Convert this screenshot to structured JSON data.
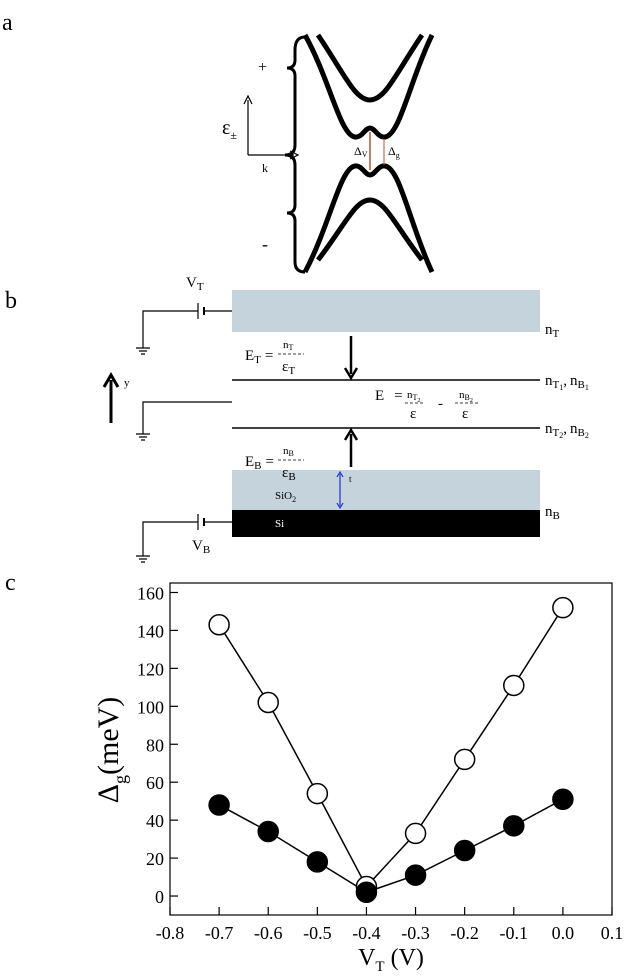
{
  "panel_a": {
    "label": "a",
    "band_plus": "+",
    "band_minus": "-",
    "energy_axis": {
      "symbol": "ε",
      "sub": "±"
    },
    "momentum_axis": "k",
    "valence_gap": {
      "symbol": "Δ",
      "sub": "V"
    },
    "band_gap": {
      "symbol": "Δ",
      "sub": "g"
    }
  },
  "panel_b": {
    "label": "b",
    "top_gate_voltage": {
      "symbol": "V",
      "sub": "T"
    },
    "back_gate_voltage": {
      "symbol": "V",
      "sub": "B"
    },
    "top_charge": {
      "symbol": "n",
      "sub": "T"
    },
    "back_charge": {
      "symbol": "n",
      "sub": "B"
    },
    "layer1_charges": {
      "n1": "n",
      "s1": "T",
      "ss1": "1",
      "sep": ",",
      "n2": "n",
      "s2": "B",
      "ss2": "1"
    },
    "layer2_charges": {
      "n1": "n",
      "s1": "T",
      "ss1": "2",
      "sep": ",",
      "n2": "n",
      "s2": "B",
      "ss2": "2"
    },
    "top_field": {
      "symbol": "E",
      "sub": "T",
      "eq": "=",
      "num": "n",
      "num_sub": "T",
      "den": "ε",
      "den_sub": "T"
    },
    "middle_field": {
      "symbol": "E",
      "eq": "=",
      "num1": "n",
      "num1_sub": "T",
      "num1_subsub": "2",
      "den1": "ε",
      "minus": "-",
      "num2": "n",
      "num2_sub": "B",
      "num2_subsub": "2",
      "den2": "ε"
    },
    "bottom_field": {
      "symbol": "E",
      "sub": "B",
      "eq": "=",
      "num": "n",
      "num_sub": "B",
      "den": "ε",
      "den_sub": "B"
    },
    "y_axis": "y",
    "oxide": {
      "symbol": "SiO",
      "sub": "2"
    },
    "thickness": "t",
    "substrate": "Si"
  },
  "chart_data": {
    "type": "line",
    "panel_label": "c",
    "x": [
      -0.7,
      -0.6,
      -0.5,
      -0.4,
      -0.3,
      -0.2,
      -0.1,
      0
    ],
    "series": [
      {
        "color": "#000000",
        "marker_fill": "#ffffff",
        "values": [
          143,
          102,
          54,
          5,
          33,
          72,
          111,
          152
        ]
      },
      {
        "color": "#000000",
        "marker_fill": "#000000",
        "values": [
          48,
          34,
          18,
          2,
          11,
          24,
          37,
          51
        ]
      }
    ],
    "xlim": [
      -0.8,
      0.1
    ],
    "ylim": [
      -10,
      165
    ],
    "xticks": [
      -0.8,
      -0.7,
      -0.6,
      -0.5,
      -0.4,
      -0.3,
      -0.2,
      -0.1,
      {
        "value": 0,
        "label": "0.0"
      },
      0.1
    ],
    "yticks": [
      0,
      20,
      40,
      60,
      80,
      100,
      120,
      140,
      160
    ],
    "x_label": {
      "symbol": "V",
      "sub": "T",
      "unit": "(V)"
    },
    "y_label": {
      "symbol": "Δ",
      "sub": "g",
      "unit": "(meV)"
    }
  }
}
